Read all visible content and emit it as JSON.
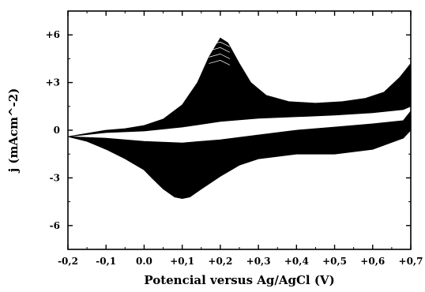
{
  "chart_data": {
    "type": "line",
    "title": "",
    "xlabel": "Potencial versus Ag/AgCl (V)",
    "ylabel": "j (mAcm^-2)",
    "xlim": [
      -0.2,
      0.7
    ],
    "ylim": [
      -7.5,
      7.5
    ],
    "x_ticks": [
      -0.2,
      -0.1,
      0.0,
      0.1,
      0.2,
      0.3,
      0.4,
      0.5,
      0.6,
      0.7
    ],
    "x_tick_labels": [
      "-0,2",
      "-0,1",
      "0.0",
      "+0,1",
      "+0,2",
      "+0,3",
      "+0,4",
      "+0,5",
      "+0,6",
      "+0,7"
    ],
    "y_ticks": [
      6,
      3,
      0,
      -3,
      -6
    ],
    "y_tick_labels": [
      "+6",
      "+3",
      "0",
      "-3",
      "-6"
    ],
    "grid": false,
    "legend": "none",
    "color": "#000000",
    "envelope": {
      "outer_upper": {
        "x": [
          -0.2,
          -0.15,
          -0.1,
          -0.05,
          0.0,
          0.05,
          0.1,
          0.14,
          0.17,
          0.2,
          0.22,
          0.25,
          0.28,
          0.32,
          0.38,
          0.45,
          0.52,
          0.58,
          0.63,
          0.67,
          0.7
        ],
        "y": [
          -0.4,
          -0.2,
          0.0,
          0.1,
          0.3,
          0.7,
          1.6,
          3.0,
          4.6,
          5.8,
          5.5,
          4.2,
          3.0,
          2.2,
          1.8,
          1.7,
          1.8,
          2.0,
          2.4,
          3.3,
          4.2
        ]
      },
      "inner_upper": {
        "x": [
          -0.2,
          -0.1,
          0.0,
          0.1,
          0.2,
          0.3,
          0.4,
          0.5,
          0.6,
          0.68,
          0.7
        ],
        "y": [
          -0.4,
          -0.15,
          -0.05,
          0.2,
          0.55,
          0.75,
          0.85,
          0.95,
          1.1,
          1.3,
          1.5
        ]
      },
      "inner_lower": {
        "x": [
          0.7,
          0.68,
          0.6,
          0.5,
          0.4,
          0.3,
          0.2,
          0.1,
          0.0,
          -0.1,
          -0.2
        ],
        "y": [
          1.2,
          0.6,
          0.4,
          0.2,
          0.0,
          -0.3,
          -0.6,
          -0.8,
          -0.7,
          -0.5,
          -0.4
        ]
      },
      "outer_lower": {
        "x": [
          0.7,
          0.68,
          0.6,
          0.5,
          0.4,
          0.3,
          0.25,
          0.2,
          0.15,
          0.12,
          0.1,
          0.08,
          0.05,
          0.02,
          0.0,
          -0.05,
          -0.1,
          -0.15,
          -0.2
        ],
        "y": [
          0.0,
          -0.5,
          -1.2,
          -1.5,
          -1.5,
          -1.8,
          -2.2,
          -2.9,
          -3.7,
          -4.2,
          -4.3,
          -4.2,
          -3.7,
          -3.0,
          -2.5,
          -1.8,
          -1.2,
          -0.7,
          -0.4
        ]
      }
    }
  }
}
